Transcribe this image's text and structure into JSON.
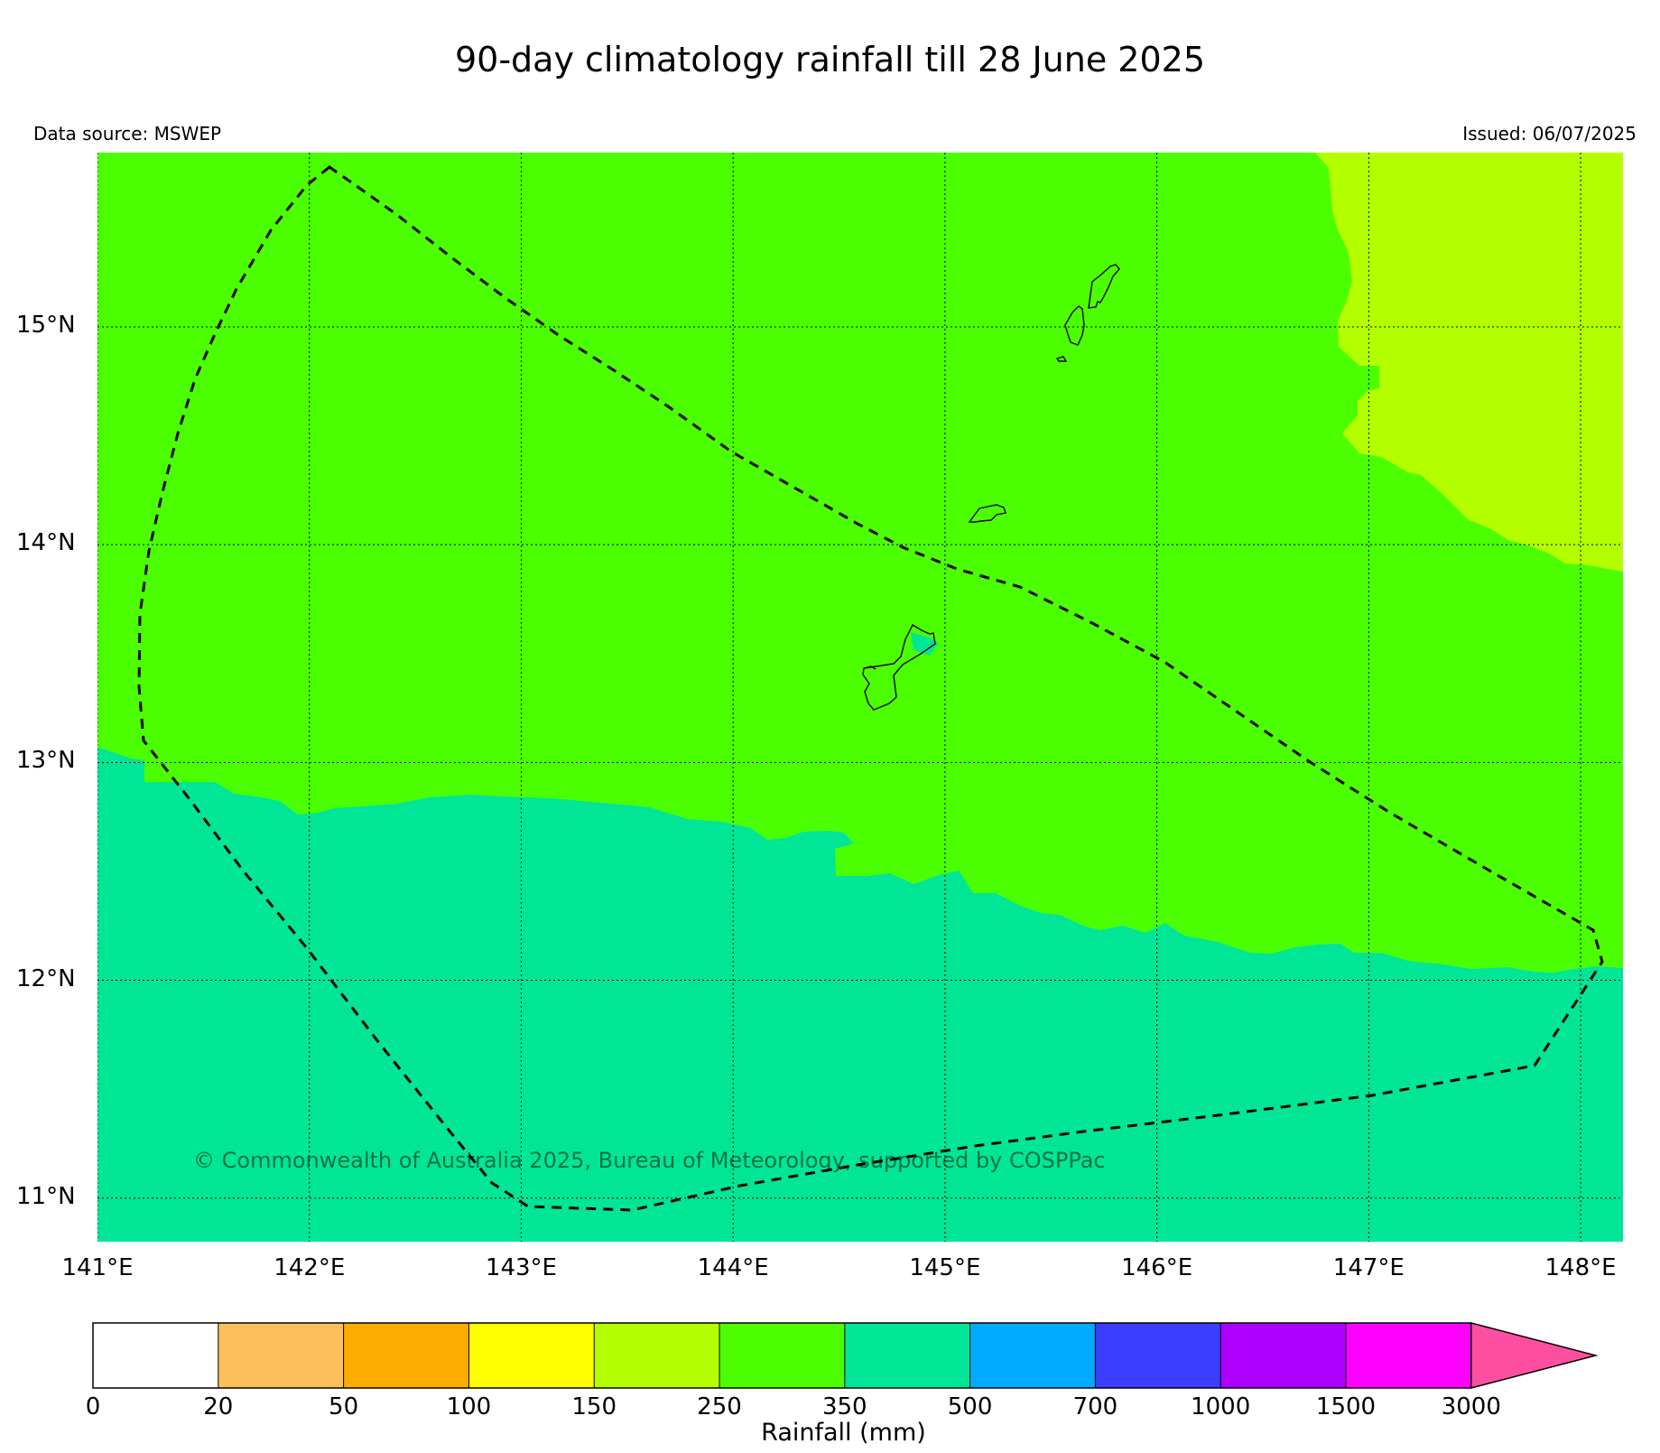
{
  "header": {
    "title": "90-day climatology rainfall till 28 June 2025",
    "data_source": "Data source: MSWEP",
    "issued": "Issued: 06/07/2025"
  },
  "map": {
    "lon_range": [
      141.0,
      148.2
    ],
    "lat_range": [
      10.8,
      15.8
    ],
    "lat_ticks": [
      {
        "value": 15,
        "label": "15°N"
      },
      {
        "value": 14,
        "label": "14°N"
      },
      {
        "value": 13,
        "label": "13°N"
      },
      {
        "value": 12,
        "label": "12°N"
      },
      {
        "value": 11,
        "label": "11°N"
      }
    ],
    "lon_ticks": [
      {
        "value": 141,
        "label": "141°E"
      },
      {
        "value": 142,
        "label": "142°E"
      },
      {
        "value": 143,
        "label": "143°E"
      },
      {
        "value": 144,
        "label": "144°E"
      },
      {
        "value": 145,
        "label": "145°E"
      },
      {
        "value": 146,
        "label": "146°E"
      },
      {
        "value": 147,
        "label": "147°E"
      },
      {
        "value": 148,
        "label": "148°E"
      }
    ],
    "grid": true,
    "regions": [
      {
        "name": "250-350",
        "color": "#4cff00"
      },
      {
        "name": "350-500",
        "color": "#00e696"
      },
      {
        "name": "150-250",
        "color": "#b3ff00"
      }
    ],
    "copyright": "© Commonwealth of Australia 2025, Bureau of Meteorology, supported by COSPPac"
  },
  "colorbar": {
    "label": "Rainfall (mm)",
    "tick_labels": [
      "0",
      "20",
      "50",
      "100",
      "150",
      "250",
      "350",
      "500",
      "700",
      "1000",
      "1500",
      "3000"
    ],
    "colors": [
      "#ffffff",
      "#fdbf5c",
      "#ffac00",
      "#ffff00",
      "#b3ff00",
      "#4cff00",
      "#00e696",
      "#00aaff",
      "#3d3dff",
      "#ad00ff",
      "#ff00ff",
      "#ff4fa3"
    ],
    "extend": "max"
  }
}
